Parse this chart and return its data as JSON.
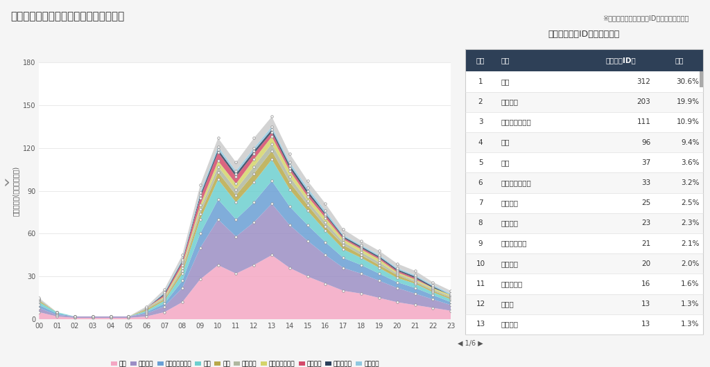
{
  "title": "［インバウンド］アワリー居住国別分布",
  "ylabel": "カウント数(期間中の合計)",
  "hours": [
    0,
    1,
    2,
    3,
    4,
    5,
    6,
    7,
    8,
    9,
    10,
    11,
    12,
    13,
    14,
    15,
    16,
    17,
    18,
    19,
    20,
    21,
    22,
    23
  ],
  "hour_labels": [
    "00",
    "01",
    "02",
    "03",
    "04",
    "05",
    "06",
    "07",
    "08",
    "09",
    "10",
    "11",
    "12",
    "13",
    "14",
    "15",
    "16",
    "17",
    "18",
    "19",
    "20",
    "21",
    "22",
    "23"
  ],
  "ylim": [
    0,
    180
  ],
  "yticks": [
    0,
    30,
    60,
    90,
    120,
    150,
    180
  ],
  "series": {
    "台湾": [
      5,
      2,
      1,
      1,
      1,
      1,
      2,
      5,
      12,
      28,
      38,
      32,
      38,
      45,
      36,
      30,
      25,
      20,
      18,
      15,
      12,
      10,
      8,
      6
    ],
    "大韓民国": [
      3,
      1,
      1,
      1,
      1,
      1,
      2,
      4,
      10,
      22,
      32,
      26,
      30,
      36,
      30,
      25,
      20,
      16,
      14,
      12,
      10,
      8,
      6,
      4
    ],
    "アメリカ合衆国": [
      2,
      1,
      0,
      0,
      0,
      0,
      1,
      2,
      5,
      10,
      14,
      12,
      14,
      16,
      13,
      11,
      9,
      7,
      6,
      5,
      4,
      4,
      3,
      2
    ],
    "香港": [
      2,
      1,
      0,
      0,
      0,
      0,
      1,
      2,
      5,
      10,
      14,
      12,
      14,
      15,
      12,
      10,
      8,
      6,
      5,
      4,
      3,
      3,
      2,
      2
    ],
    "タイ": [
      1,
      0,
      0,
      0,
      0,
      0,
      1,
      1,
      2,
      4,
      5,
      5,
      6,
      6,
      5,
      4,
      3,
      3,
      2,
      2,
      2,
      1,
      1,
      1
    ],
    "ベトナム": [
      1,
      0,
      0,
      0,
      0,
      0,
      1,
      1,
      2,
      3,
      4,
      4,
      5,
      5,
      4,
      3,
      3,
      2,
      2,
      2,
      1,
      1,
      1,
      1
    ],
    "オーストラリア": [
      0,
      0,
      0,
      0,
      0,
      0,
      0,
      1,
      2,
      3,
      4,
      4,
      5,
      5,
      4,
      3,
      3,
      2,
      2,
      2,
      1,
      1,
      1,
      1
    ],
    "ブラジル": [
      0,
      0,
      0,
      0,
      0,
      0,
      0,
      1,
      2,
      5,
      6,
      5,
      4,
      3,
      2,
      2,
      2,
      1,
      1,
      1,
      1,
      1,
      0,
      0
    ],
    "フィリピン": [
      0,
      0,
      0,
      0,
      0,
      0,
      0,
      1,
      1,
      2,
      2,
      2,
      2,
      2,
      2,
      2,
      1,
      1,
      1,
      1,
      1,
      1,
      1,
      0
    ],
    "フランス": [
      0,
      0,
      0,
      0,
      0,
      0,
      0,
      1,
      1,
      2,
      2,
      2,
      2,
      2,
      2,
      2,
      2,
      1,
      1,
      1,
      1,
      1,
      1,
      1
    ],
    "その他": [
      1,
      0,
      0,
      0,
      0,
      0,
      1,
      2,
      3,
      5,
      6,
      6,
      7,
      7,
      6,
      5,
      5,
      4,
      3,
      3,
      3,
      3,
      2,
      2
    ]
  },
  "colors": {
    "台湾": "#F4A7C3",
    "大韓民国": "#9B8EC4",
    "アメリカ合衆国": "#6A9FD4",
    "香港": "#6DCFCF",
    "タイ": "#B8A94A",
    "ベトナム": "#B0B8A0",
    "オーストラリア": "#D4D46A",
    "ブラジル": "#D44A6A",
    "フィリピン": "#2A3F5A",
    "フランス": "#90C8E0",
    "その他": "#CCCCCC"
  },
  "bg_color": "#F5F5F5",
  "plot_bg": "#FFFFFF",
  "table_title": "国別ユニークID数ランキング",
  "table_header_bg": "#2E4057",
  "table_header_color": "#FFFFFF",
  "table_row_bg1": "#FFFFFF",
  "table_row_bg2": "#F7F7F7",
  "table_data": [
    [
      1,
      "台湾",
      312,
      "30.6%"
    ],
    [
      2,
      "大韓民国",
      203,
      "19.9%"
    ],
    [
      3,
      "アメリカ合衆国",
      111,
      "10.9%"
    ],
    [
      4,
      "香港",
      96,
      "9.4%"
    ],
    [
      5,
      "タイ",
      37,
      "3.6%"
    ],
    [
      6,
      "オーストラリア",
      33,
      "3.2%"
    ],
    [
      7,
      "ブラジル",
      25,
      "2.5%"
    ],
    [
      8,
      "ベトナム",
      23,
      "2.3%"
    ],
    [
      9,
      "インドネシア",
      21,
      "2.1%"
    ],
    [
      10,
      "フランス",
      20,
      "2.0%"
    ],
    [
      11,
      "フィリピン",
      16,
      "1.6%"
    ],
    [
      12,
      "カナダ",
      13,
      "1.3%"
    ],
    [
      13,
      "メキシコ",
      13,
      "1.3%"
    ]
  ],
  "table_headers": [
    "順位",
    "国名",
    "ユニークID数",
    "割合"
  ],
  "legend_labels": [
    "台湾",
    "大韓民国",
    "アメリカ合衆国",
    "香港",
    "タイ",
    "ベトナム",
    "オーストラリア",
    "ブラジル",
    "フィリピン",
    "フランス"
  ],
  "note_text": "※カウント数とユニークID数の違いはこちら",
  "page_indicator": "◀ 1/6 ▶"
}
